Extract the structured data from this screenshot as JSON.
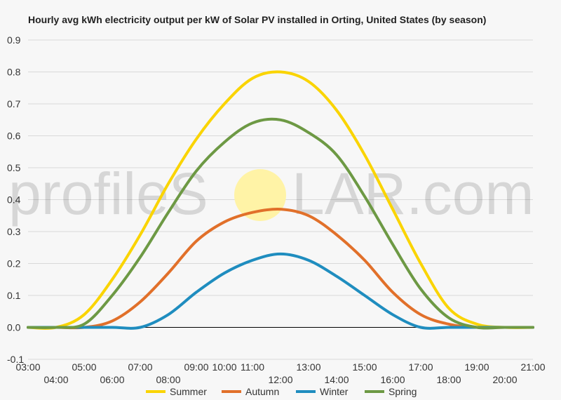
{
  "colors": {
    "background": "#f7f7f7",
    "grid": "#d9d9d9",
    "zero_line": "#000000"
  },
  "watermark": {
    "left": "profileS",
    "right": "LAR.com",
    "sun_icon": "sun-icon",
    "sun_color": "#fff3a6"
  },
  "chart_data": {
    "type": "line",
    "title": "Hourly avg kWh electricity output per kW of Solar PV installed in Orting, United States (by season)",
    "xlabel": "",
    "ylabel": "",
    "ylim": [
      -0.1,
      0.9
    ],
    "yticks": [
      "-0.1",
      "0.0",
      "0.1",
      "0.2",
      "0.3",
      "0.4",
      "0.5",
      "0.6",
      "0.7",
      "0.8",
      "0.9"
    ],
    "xlim": [
      3,
      21
    ],
    "xticks_upper": [
      "03:00",
      "05:00",
      "07:00",
      "09:00",
      "10:00",
      "11:00",
      "13:00",
      "15:00",
      "17:00",
      "19:00",
      "21:00"
    ],
    "xticks_lower": [
      "04:00",
      "06:00",
      "08:00",
      "12:00",
      "14:00",
      "16:00",
      "18:00",
      "20:00"
    ],
    "grid": true,
    "legend_position": "bottom",
    "x": [
      "03:00",
      "04:00",
      "05:00",
      "06:00",
      "07:00",
      "08:00",
      "09:00",
      "10:00",
      "11:00",
      "12:00",
      "13:00",
      "14:00",
      "15:00",
      "16:00",
      "17:00",
      "18:00",
      "19:00",
      "20:00",
      "21:00"
    ],
    "series": [
      {
        "name": "Summer",
        "color": "#fad400",
        "values": [
          0.0,
          0.0,
          0.04,
          0.15,
          0.29,
          0.45,
          0.59,
          0.7,
          0.78,
          0.8,
          0.77,
          0.68,
          0.54,
          0.37,
          0.2,
          0.06,
          0.01,
          0.0,
          0.0
        ]
      },
      {
        "name": "Autumn",
        "color": "#e1702a",
        "values": [
          0.0,
          0.0,
          0.0,
          0.02,
          0.08,
          0.17,
          0.27,
          0.33,
          0.36,
          0.37,
          0.35,
          0.29,
          0.21,
          0.11,
          0.04,
          0.01,
          0.0,
          0.0,
          0.0
        ]
      },
      {
        "name": "Winter",
        "color": "#1f8dbf",
        "values": [
          0.0,
          0.0,
          0.0,
          0.0,
          0.0,
          0.04,
          0.11,
          0.17,
          0.21,
          0.23,
          0.21,
          0.16,
          0.1,
          0.04,
          0.0,
          0.0,
          0.0,
          0.0,
          0.0
        ]
      },
      {
        "name": "Spring",
        "color": "#6d9944",
        "values": [
          0.0,
          0.0,
          0.01,
          0.1,
          0.22,
          0.36,
          0.49,
          0.58,
          0.64,
          0.65,
          0.61,
          0.54,
          0.41,
          0.26,
          0.12,
          0.03,
          0.0,
          0.0,
          0.0
        ]
      }
    ]
  }
}
